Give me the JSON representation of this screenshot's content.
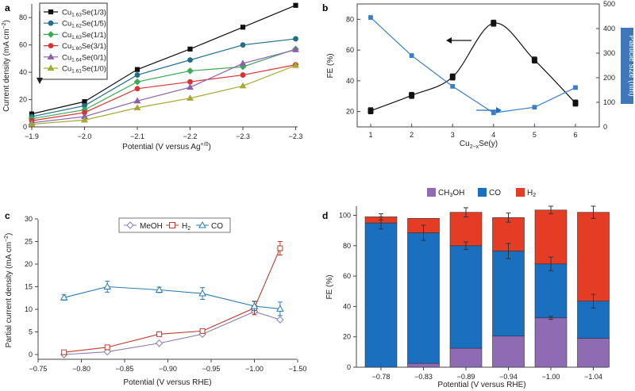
{
  "panels": {
    "a": "a",
    "b": "b",
    "c": "c",
    "d": "d"
  },
  "chart_data": [
    {
      "id": "a",
      "type": "line",
      "xlabel": "Potential (V versus Ag+/0)",
      "ylabel": "Current density (mA cm−2)",
      "x_ticks": [
        "−1.9",
        "−2.0",
        "−2.1",
        "−2.2",
        "−2.3",
        "−2.3"
      ],
      "x": [
        -1.9,
        -2.0,
        -2.1,
        -2.2,
        -2.3,
        -2.3
      ],
      "ylim": [
        0,
        90
      ],
      "y_ticks": [
        "0",
        "20",
        "40",
        "60",
        "80"
      ],
      "grid": false,
      "legend_position": "top-left",
      "series": [
        {
          "name": "Cu1.63Se(1/3)",
          "color": "#111111",
          "marker": "square",
          "values": [
            9.5,
            18.5,
            42,
            57,
            73,
            89
          ]
        },
        {
          "name": "Cu1.62Se(1/5)",
          "color": "#1f6e8c",
          "marker": "circle",
          "values": [
            7.5,
            15.5,
            38,
            49,
            60,
            64.5
          ]
        },
        {
          "name": "Cu1.63Se(1/1)",
          "color": "#3daa55",
          "marker": "diamond",
          "values": [
            6,
            12.5,
            33,
            41,
            44,
            57
          ]
        },
        {
          "name": "Cu1.60Se(3/1)",
          "color": "#d93232",
          "marker": "circle",
          "values": [
            4.5,
            10.5,
            28,
            33,
            38,
            45.5
          ]
        },
        {
          "name": "Cu1.64Se(0/1)",
          "color": "#8e5fae",
          "marker": "triangle",
          "values": [
            3,
            7.5,
            19,
            29,
            46.5,
            56.5
          ]
        },
        {
          "name": "Cu1.61Se(1/0)",
          "color": "#a5a832",
          "marker": "triangle",
          "values": [
            2,
            5,
            14,
            21,
            30,
            45
          ]
        }
      ],
      "legend": {
        "bases": [
          "Cu",
          "Cu",
          "Cu",
          "Cu",
          "Cu",
          "Cu"
        ],
        "subs": [
          "1.63",
          "1.62",
          "1.63",
          "1.60",
          "1.64",
          "1.61"
        ],
        "suffixes": [
          "Se(1/3)",
          "Se(1/5)",
          "Se(1/1)",
          "Se(3/1)",
          "Se(0/1)",
          "Se(1/0)"
        ]
      },
      "arrow_direction": "down"
    },
    {
      "id": "b",
      "type": "line",
      "xlabel": "Cu2−xSe(y)",
      "ylabel_left": "FE (%)",
      "ylabel_right": "Particle size (nm)",
      "x": [
        1,
        2,
        3,
        4,
        5,
        6
      ],
      "x_ticks": [
        "1",
        "2",
        "3",
        "4",
        "5",
        "6"
      ],
      "ylim_left": [
        10,
        90
      ],
      "y_ticks_left": [
        "20",
        "40",
        "60",
        "80"
      ],
      "ylim_right": [
        0,
        500
      ],
      "y_ticks_right": [
        "0",
        "100",
        "200",
        "300",
        "400",
        "500"
      ],
      "series": [
        {
          "name": "FE",
          "axis": "left",
          "color": "#111111",
          "marker": "square",
          "values": [
            20.5,
            30.5,
            42.5,
            77.5,
            53.5,
            25.5
          ],
          "errors": [
            2,
            2,
            2,
            2,
            2,
            2
          ],
          "smooth_curve": true
        },
        {
          "name": "Particle size",
          "axis": "right",
          "color": "#3a7ec9",
          "marker": "square",
          "values": [
            445,
            290,
            165,
            57,
            80,
            160
          ]
        }
      ],
      "arrows": [
        {
          "points_to": "left",
          "color": "#111111"
        },
        {
          "points_to": "right",
          "color": "#1f6ec0"
        }
      ]
    },
    {
      "id": "c",
      "type": "line",
      "xlabel": "Potential (V versus RHE)",
      "ylabel": "Partial current density (mA cm−2)",
      "x_ticks": [
        "−0.75",
        "−0.80",
        "−0.85",
        "−0.90",
        "−0.95",
        "−1.00",
        "−1.50"
      ],
      "x": [
        -0.78,
        -0.83,
        -0.89,
        -0.94,
        -1.0,
        -1.04
      ],
      "ylim": [
        -2,
        30
      ],
      "y_ticks": [
        "0",
        "5",
        "10",
        "15",
        "20",
        "25",
        "30"
      ],
      "legend_position": "top",
      "series": [
        {
          "name": "MeOH",
          "color": "#8a7bb0",
          "marker": "diamond",
          "values": [
            0,
            0.6,
            2.5,
            4.5,
            9.5,
            7.7
          ],
          "errors": [
            0,
            0,
            0,
            0,
            0,
            0
          ]
        },
        {
          "name": "H2",
          "color": "#c0392b",
          "marker": "square",
          "values": [
            0.5,
            1.6,
            4.5,
            5.2,
            10.3,
            23.5
          ],
          "errors": [
            0.3,
            0.3,
            0.3,
            0.5,
            1.5,
            1.5
          ]
        },
        {
          "name": "CO",
          "color": "#2a7cb0",
          "marker": "triangle",
          "values": [
            12.6,
            15,
            14.3,
            13.5,
            10.7,
            10.1
          ],
          "errors": [
            0.6,
            1.2,
            0.6,
            1.3,
            1.0,
            1.5
          ]
        }
      ],
      "legend": {
        "meoh": "MeOH",
        "h2_base": "H",
        "h2_sub": "2",
        "co": "CO"
      }
    },
    {
      "id": "d",
      "type": "bar",
      "stacked": true,
      "xlabel": "Potential (V versus RHE)",
      "ylabel": "FE (%)",
      "categories": [
        "−0.78",
        "−0.83",
        "−0.89",
        "−0.94",
        "−1.00",
        "−1.04"
      ],
      "ylim": [
        0,
        105
      ],
      "y_ticks": [
        "0",
        "20",
        "40",
        "60",
        "80",
        "100"
      ],
      "legend_position": "top",
      "series": [
        {
          "name": "CH3OH",
          "color": "#8e6bb3",
          "values": [
            0,
            2.5,
            12.5,
            20.5,
            32.5,
            19
          ],
          "errors": [
            0,
            0,
            0,
            0,
            1,
            0
          ]
        },
        {
          "name": "CO",
          "color": "#1a6fbf",
          "values": [
            95,
            86,
            67.5,
            56,
            35.5,
            24.5
          ],
          "errors": [
            4,
            5,
            2.5,
            5,
            4.5,
            4.5
          ]
        },
        {
          "name": "H2",
          "color": "#e53d25",
          "values": [
            4,
            9.5,
            22,
            22,
            35.5,
            58.5
          ],
          "errors": [
            2,
            0,
            3,
            3,
            2.5,
            4
          ]
        }
      ],
      "legend": {
        "ch3oh_a": "CH",
        "ch3oh_sub": "3",
        "ch3oh_b": "OH",
        "co": "CO",
        "h2_base": "H",
        "h2_sub": "2"
      }
    }
  ]
}
